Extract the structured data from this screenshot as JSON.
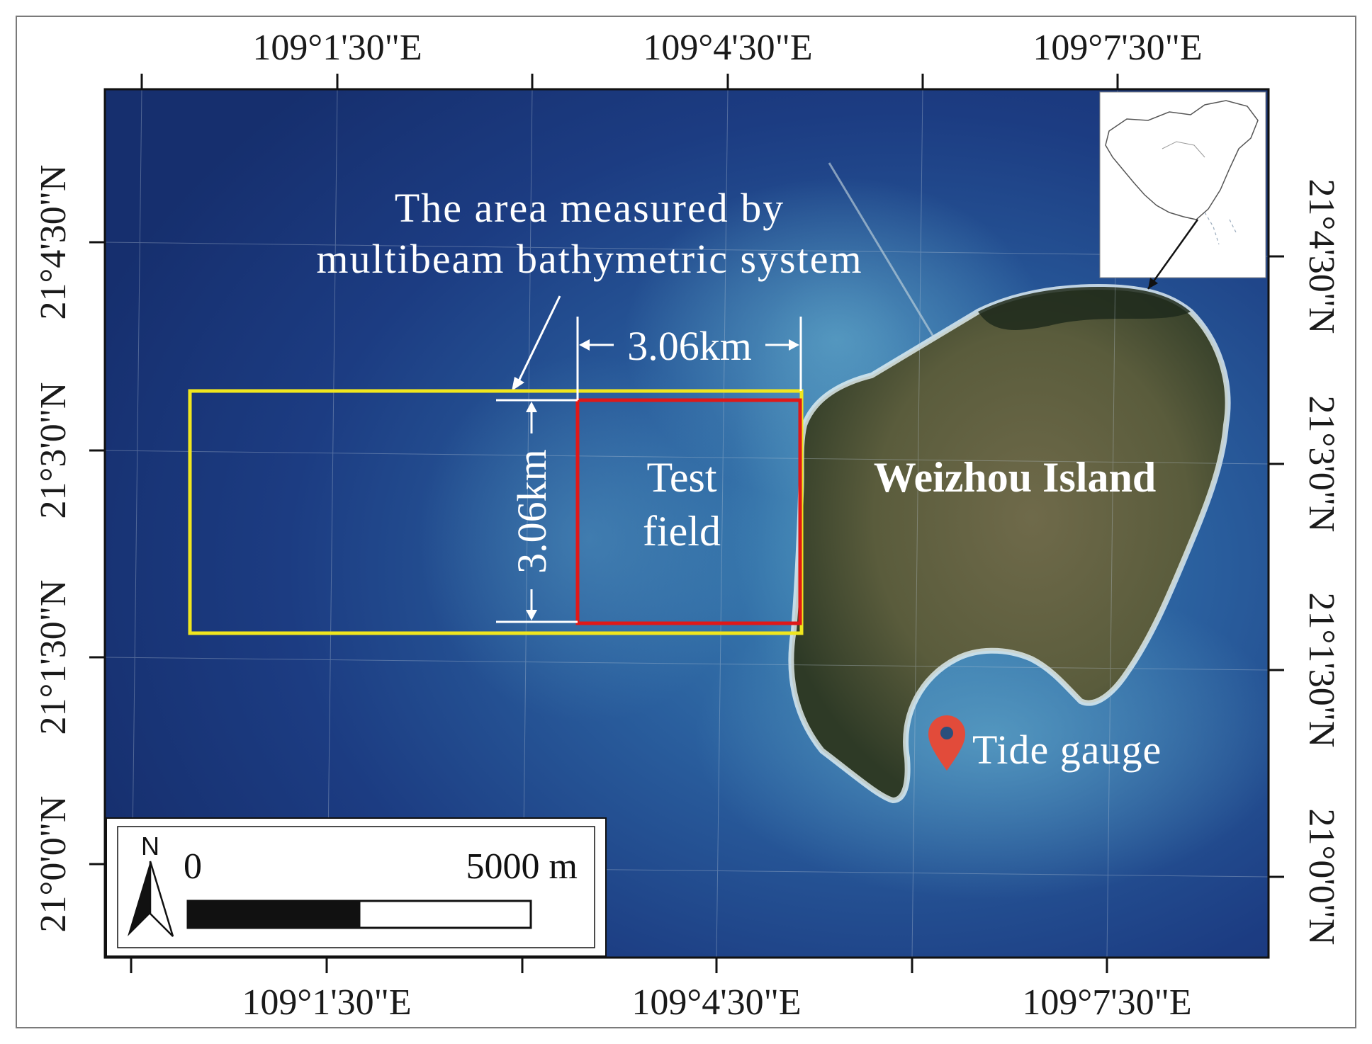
{
  "map": {
    "top_lon_labels": [
      "109°1'30\"E",
      "109°4'30\"E",
      "109°7'30\"E"
    ],
    "bottom_lon_labels": [
      "109°1'30\"E",
      "109°4'30\"E",
      "109°7'30\"E"
    ],
    "left_lat_labels": [
      "21°4'30\"N",
      "21°3'0\"N",
      "21°1'30\"N",
      "21°0'0\"N"
    ],
    "right_lat_labels": [
      "21°4'30\"N",
      "21°3'0\"N",
      "21°1'30\"N",
      "21°0'0\"N"
    ]
  },
  "annotations": {
    "multibeam_line1": "The area measured by",
    "multibeam_line2": "multibeam bathymetric system",
    "width_label": "3.06km",
    "height_label": "3.06km",
    "test_field_line1": "Test",
    "test_field_line2": "field",
    "island_label": "Weizhou Island",
    "tide_gauge_label": "Tide gauge"
  },
  "scale_bar": {
    "north": "N",
    "zero": "0",
    "max": "5000 m"
  },
  "colors": {
    "sea_deep": "#1c3c82",
    "sea_shallow": "#3f86b5",
    "measured_area": "#f0e61e",
    "test_field": "#e01818",
    "tide_gauge": "#e24b3a"
  },
  "icons": {
    "marker": "map-pin-icon",
    "north": "north-arrow-icon"
  }
}
